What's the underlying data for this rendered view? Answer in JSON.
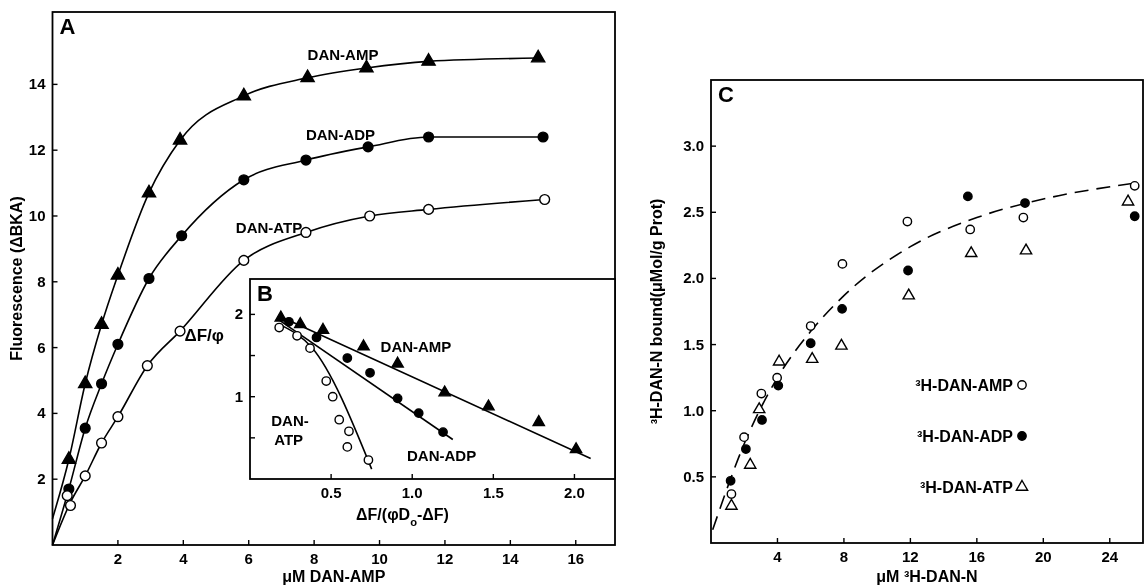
{
  "chart_data": [
    {
      "type": "scatter",
      "title": "A",
      "xlabel": "μM DAN-AMP",
      "ylabel": "Fluorescence (ΔBKA)",
      "xlim": [
        0,
        17.2
      ],
      "ylim": [
        0,
        16.2
      ],
      "xticks": [
        2,
        4,
        6,
        8,
        10,
        12,
        14,
        16
      ],
      "yticks": [
        2,
        4,
        6,
        8,
        10,
        12,
        14
      ],
      "legend": false,
      "series": [
        {
          "name": "DAN-AMP",
          "color": "#000000",
          "marker": "triangle",
          "x": [
            0.5,
            1.0,
            1.5,
            2.0,
            2.95,
            3.9,
            5.85,
            7.8,
            9.6,
            11.5,
            14.85
          ],
          "values": [
            2.6,
            4.9,
            6.7,
            8.2,
            10.7,
            12.3,
            13.65,
            14.2,
            14.5,
            14.7,
            14.8
          ]
        },
        {
          "name": "DAN-ADP",
          "color": "#000000",
          "marker": "circle",
          "x": [
            0.5,
            1.0,
            1.5,
            2.0,
            2.95,
            3.95,
            5.85,
            7.75,
            9.65,
            11.5,
            15.0
          ],
          "values": [
            1.7,
            3.55,
            4.9,
            6.1,
            8.1,
            9.4,
            11.1,
            11.7,
            12.1,
            12.4,
            12.4
          ]
        },
        {
          "name": "DAN-ATP",
          "color": "#ffffff",
          "marker": "circle",
          "x": [
            0.45,
            0.55,
            1.0,
            1.5,
            2.0,
            2.9,
            3.9,
            5.85,
            7.75,
            9.7,
            11.5,
            15.05
          ],
          "values": [
            1.5,
            1.2,
            2.1,
            3.1,
            3.9,
            5.45,
            6.5,
            8.65,
            9.5,
            10.0,
            10.2,
            10.5
          ]
        },
        {
          "type": "line",
          "color": "#000000",
          "marker": "none",
          "line_style": "solid",
          "x": [
            0,
            0.5,
            1.0,
            1.5,
            2.0,
            2.95,
            3.9,
            5.85,
            7.8,
            9.6,
            11.5,
            14.85
          ],
          "values": [
            0.8,
            2.6,
            4.9,
            6.7,
            8.2,
            10.7,
            12.3,
            13.65,
            14.2,
            14.5,
            14.7,
            14.8
          ]
        },
        {
          "type": "line",
          "color": "#000000",
          "marker": "none",
          "line_style": "solid",
          "x": [
            0,
            0.5,
            1.0,
            1.5,
            2.0,
            2.95,
            3.95,
            5.85,
            7.75,
            9.65,
            11.5,
            15.0
          ],
          "values": [
            0,
            1.7,
            3.55,
            4.9,
            6.1,
            8.1,
            9.4,
            11.1,
            11.7,
            12.1,
            12.4,
            12.4
          ]
        },
        {
          "type": "line",
          "color": "#000000",
          "marker": "none",
          "line_style": "solid",
          "x": [
            0,
            0.55,
            1.0,
            1.5,
            2.0,
            2.9,
            3.9,
            5.85,
            7.75,
            9.7,
            11.5,
            15.05
          ],
          "values": [
            0,
            1.3,
            2.1,
            3.1,
            3.9,
            5.45,
            6.5,
            8.65,
            9.5,
            10.0,
            10.2,
            10.5
          ]
        }
      ]
    },
    {
      "type": "scatter",
      "title": "B",
      "xlabel": "ΔF/(φD$_{o}$-ΔF)",
      "ylabel": "ΔF/φ",
      "xlim": [
        0,
        2.25
      ],
      "ylim": [
        0,
        2.43
      ],
      "xticks": [
        0.5,
        {
          "value": 1,
          "label": "1.0"
        },
        1.5,
        {
          "value": 2,
          "label": "2.0"
        }
      ],
      "yticks": [
        {
          "value": 0.5,
          "label": null
        },
        1,
        {
          "value": 1.5,
          "label": null
        },
        2
      ],
      "legend": false,
      "series": [
        {
          "name": "DAN-AMP",
          "color": "#000000",
          "marker": "triangle",
          "x": [
            0.19,
            0.31,
            0.45,
            0.7,
            0.91,
            1.2,
            1.47,
            1.78,
            2.01
          ],
          "values": [
            1.96,
            1.88,
            1.81,
            1.61,
            1.4,
            1.05,
            0.88,
            0.69,
            0.36
          ]
        },
        {
          "name": "DAN-ADP",
          "color": "#000000",
          "marker": "circle",
          "x": [
            0.24,
            0.41,
            0.6,
            0.74,
            0.91,
            1.04,
            1.19
          ],
          "values": [
            1.91,
            1.72,
            1.47,
            1.29,
            0.98,
            0.8,
            0.57
          ]
        },
        {
          "name": "DAN-ATP",
          "color": "#ffffff",
          "marker": "circle",
          "x": [
            0.18,
            0.29,
            0.37,
            0.47,
            0.51,
            0.55,
            0.61,
            0.6,
            0.73
          ],
          "values": [
            1.84,
            1.74,
            1.59,
            1.19,
            1.0,
            0.72,
            0.58,
            0.39,
            0.23
          ]
        },
        {
          "type": "line",
          "color": "#000000",
          "marker": "none",
          "line_style": "solid",
          "x": [
            0.18,
            2.1
          ],
          "values": [
            1.98,
            0.25
          ]
        },
        {
          "type": "line",
          "color": "#000000",
          "marker": "none",
          "line_style": "solid",
          "x": [
            0.18,
            1.25
          ],
          "values": [
            1.93,
            0.48
          ]
        },
        {
          "type": "line",
          "color": "#000000",
          "marker": "none",
          "line_style": "solid",
          "x": [
            0.2,
            0.38,
            0.75
          ],
          "values": [
            1.86,
            1.6,
            0.12
          ]
        }
      ]
    },
    {
      "type": "scatter",
      "title": "C",
      "xlabel": "μM ³H-DAN-N",
      "ylabel": "³H-DAN-N bound(μMol/g Prot)",
      "xlim": [
        0,
        26
      ],
      "ylim": [
        0,
        3.5
      ],
      "xticks": [
        4,
        8,
        12,
        16,
        20,
        24
      ],
      "yticks": [
        0.5,
        {
          "value": 1,
          "label": "1.0"
        },
        1.5,
        {
          "value": 2,
          "label": "2.0"
        },
        2.5,
        {
          "value": 3,
          "label": "3.0"
        }
      ],
      "legend": "bottom right",
      "series": [
        {
          "name": "³H-DAN-AMP",
          "color": "#ffffff",
          "marker": "circle",
          "x": [
            1.23,
            1.99,
            3.03,
            3.98,
            6.0,
            7.91,
            11.82,
            15.6,
            18.8,
            25.5
          ],
          "values": [
            0.37,
            0.8,
            1.13,
            1.25,
            1.64,
            2.11,
            2.43,
            2.37,
            2.46,
            2.7
          ]
        },
        {
          "name": "³H-DAN-ADP",
          "color": "#000000",
          "marker": "circle",
          "x": [
            1.18,
            2.1,
            3.07,
            4.05,
            6.0,
            7.89,
            11.86,
            15.46,
            18.9,
            25.5
          ],
          "values": [
            0.47,
            0.71,
            0.93,
            1.19,
            1.51,
            1.77,
            2.06,
            2.62,
            2.57,
            2.47
          ]
        },
        {
          "name": "³H-DAN-ATP",
          "color": "#ffffff",
          "marker": "triangle",
          "x": [
            1.23,
            2.36,
            2.9,
            4.1,
            6.09,
            7.85,
            11.9,
            15.66,
            18.96,
            25.1
          ],
          "values": [
            0.28,
            0.59,
            1.01,
            1.37,
            1.39,
            1.49,
            1.87,
            2.19,
            2.21,
            2.58
          ]
        },
        {
          "type": "line",
          "color": "#000000",
          "marker": "none",
          "line_style": "dashed",
          "x": [
            0.1,
            2,
            4,
            6,
            8,
            12,
            16,
            20,
            25.5
          ],
          "values": [
            0.1,
            0.75,
            1.25,
            1.6,
            1.87,
            2.24,
            2.46,
            2.6,
            2.72
          ]
        }
      ]
    }
  ]
}
